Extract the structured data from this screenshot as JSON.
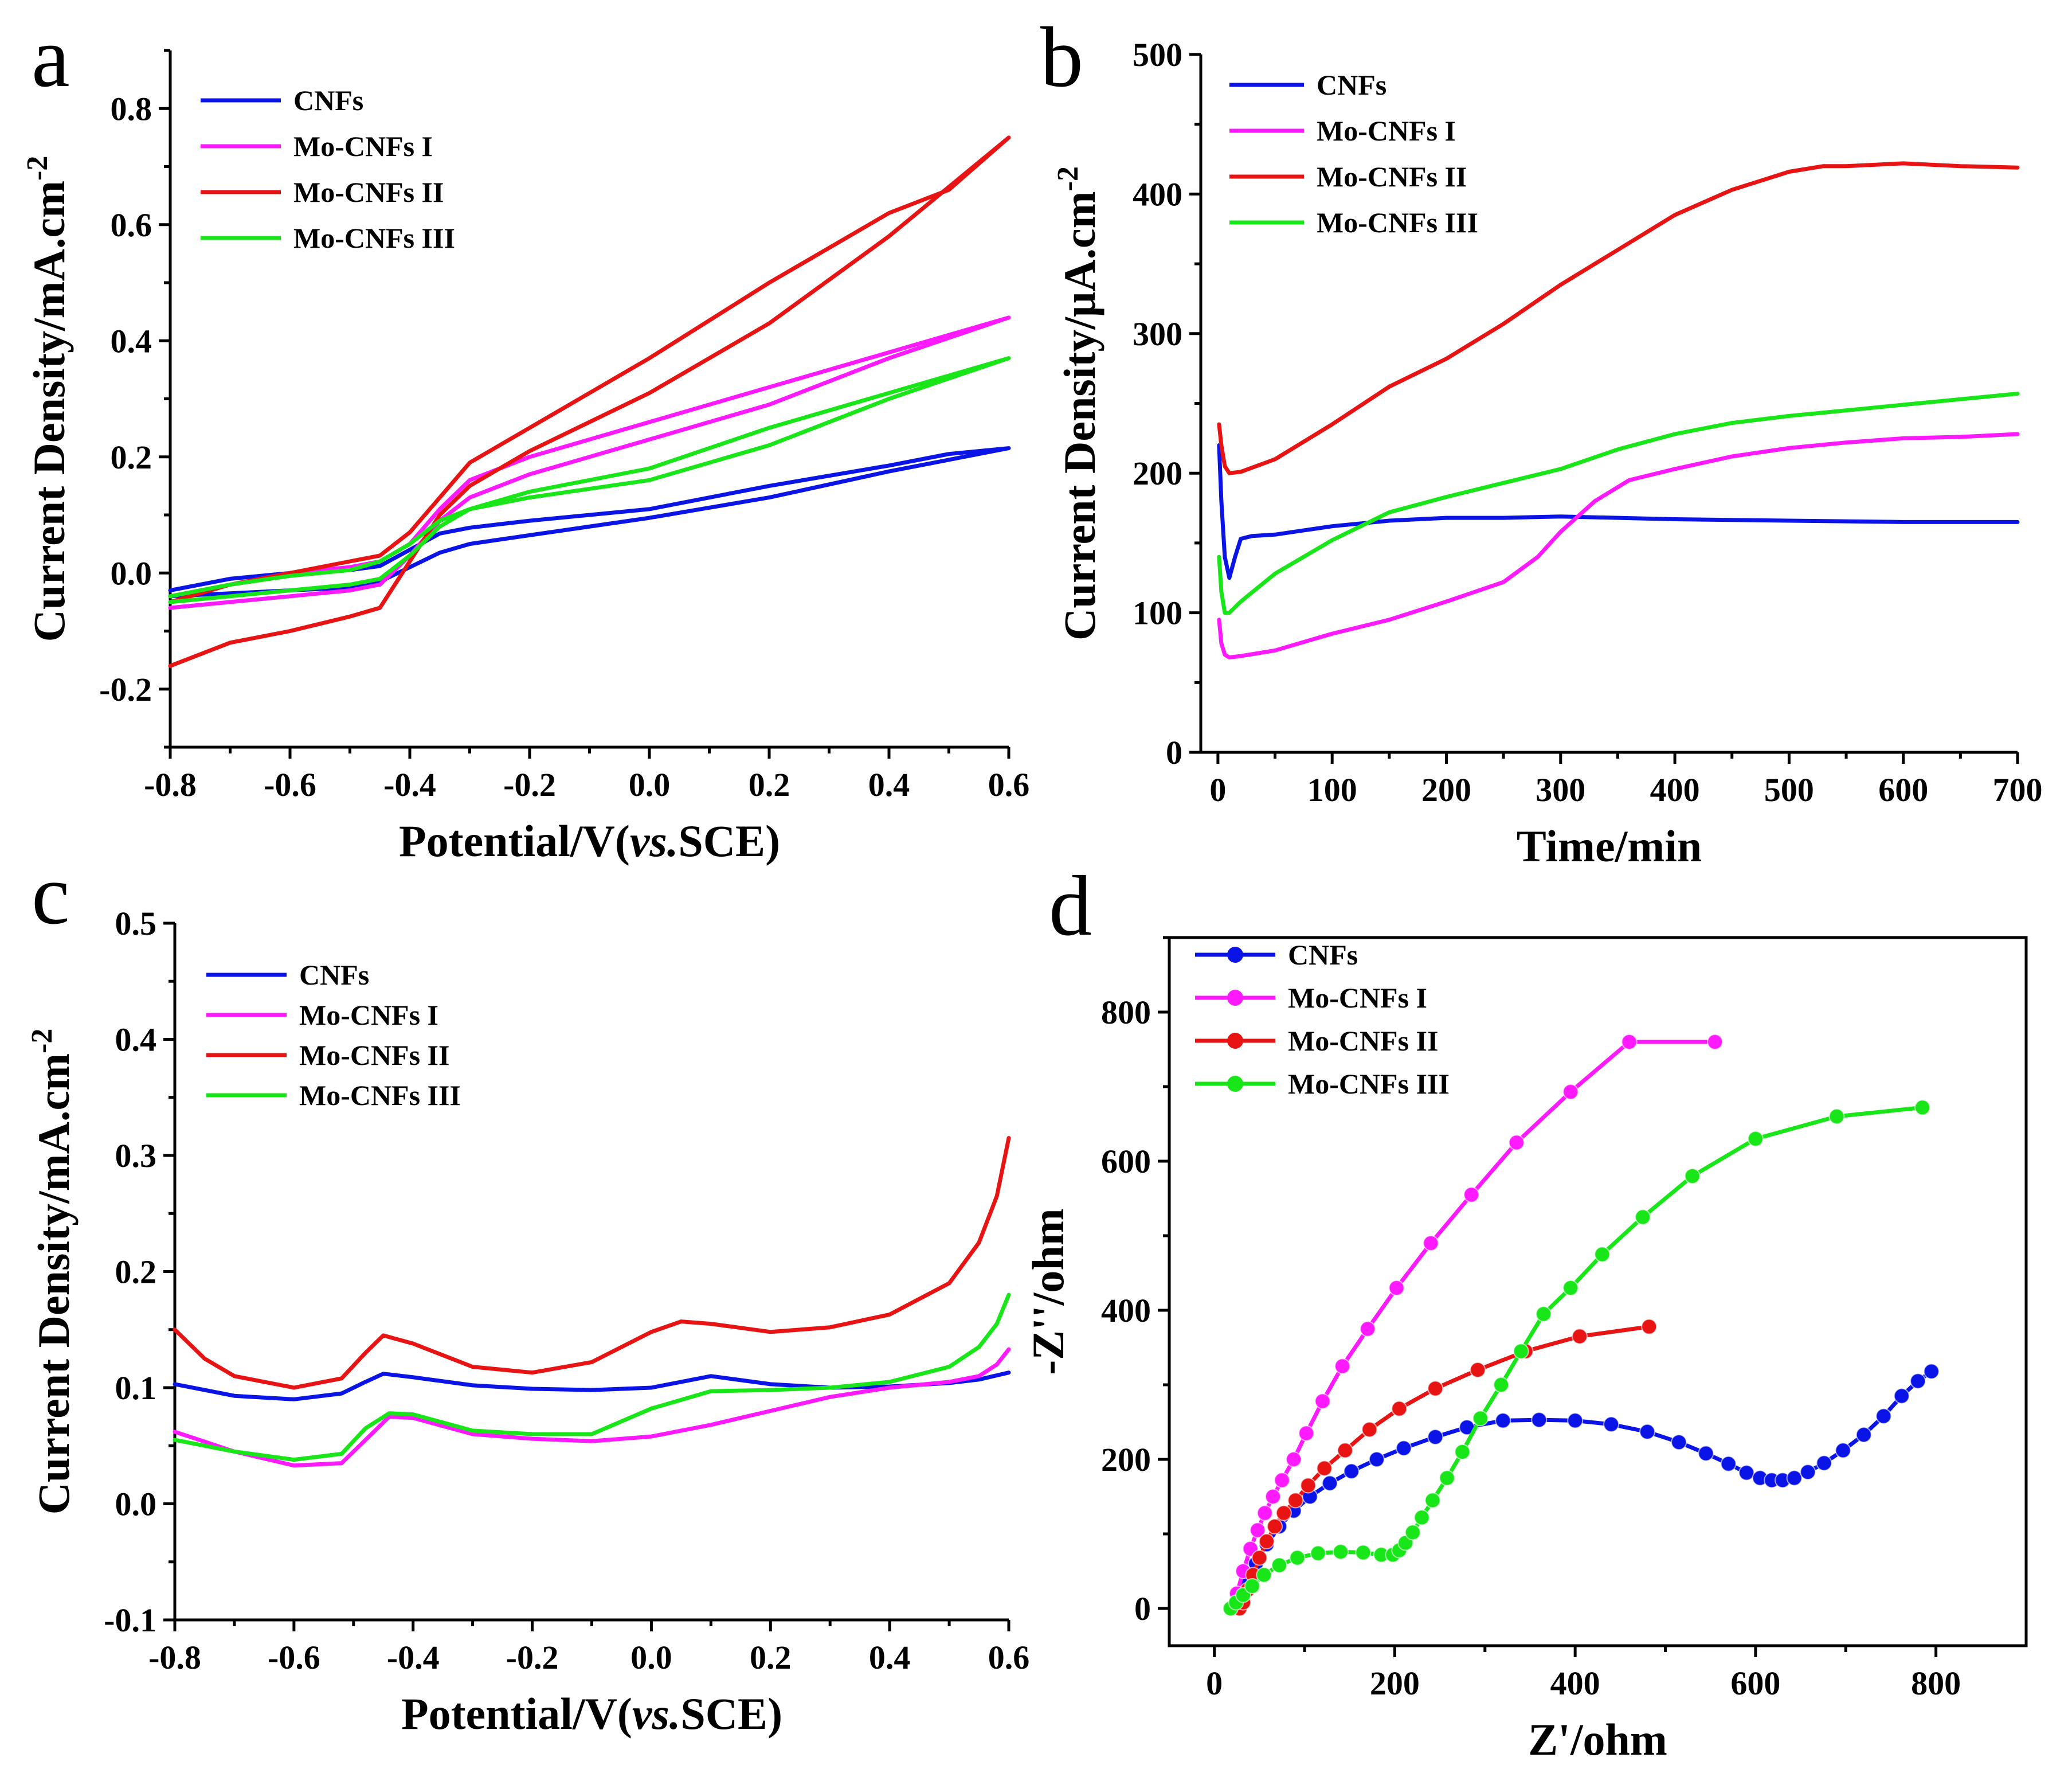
{
  "colors": {
    "CNFs": "#0a14e6",
    "Mo-CNFs I": "#ff19ff",
    "Mo-CNFs II": "#e81414",
    "Mo-CNFs III": "#19e619"
  },
  "legend": [
    "CNFs",
    "Mo-CNFs I",
    "Mo-CNFs II",
    "Mo-CNFs III"
  ],
  "chart_data": [
    {
      "id": "a",
      "type": "line",
      "panel_label": "a",
      "xlabel_parts": [
        "Potential/V(",
        "vs.",
        "SCE)"
      ],
      "ylabel": "Current Density/mA.cm",
      "ylabel_sup": "-2",
      "xlim": [
        -0.8,
        0.6
      ],
      "ylim": [
        -0.3,
        0.9
      ],
      "xticks": [
        "-0.8",
        "-0.6",
        "-0.4",
        "-0.2",
        "0.0",
        "0.2",
        "0.4",
        "0.6"
      ],
      "xtick_values": [
        -0.8,
        -0.6,
        -0.4,
        -0.2,
        0.0,
        0.2,
        0.4,
        0.6
      ],
      "yticks": [
        "-0.2",
        "0.0",
        "0.2",
        "0.4",
        "0.6",
        "0.8"
      ],
      "ytick_values": [
        -0.2,
        0.0,
        0.2,
        0.4,
        0.6,
        0.8
      ],
      "series": [
        {
          "name": "CNFs",
          "x": [
            -0.8,
            -0.7,
            -0.6,
            -0.5,
            -0.45,
            -0.4,
            -0.35,
            -0.3,
            -0.2,
            0.0,
            0.2,
            0.4,
            0.6,
            0.5,
            0.4,
            0.2,
            0.0,
            -0.2,
            -0.3,
            -0.35,
            -0.4,
            -0.45,
            -0.5,
            -0.6,
            -0.7,
            -0.8
          ],
          "y": [
            -0.04,
            -0.035,
            -0.03,
            -0.025,
            -0.015,
            0.01,
            0.035,
            0.05,
            0.065,
            0.095,
            0.13,
            0.175,
            0.215,
            0.205,
            0.185,
            0.15,
            0.11,
            0.09,
            0.078,
            0.068,
            0.04,
            0.012,
            0.005,
            0.0,
            -0.01,
            -0.03
          ]
        },
        {
          "name": "Mo-CNFs I",
          "x": [
            -0.8,
            -0.7,
            -0.6,
            -0.5,
            -0.45,
            -0.4,
            -0.35,
            -0.3,
            -0.2,
            0.0,
            0.2,
            0.4,
            0.6,
            0.5,
            0.4,
            0.2,
            0.0,
            -0.2,
            -0.3,
            -0.35,
            -0.4,
            -0.45,
            -0.5,
            -0.6,
            -0.7,
            -0.8
          ],
          "y": [
            -0.06,
            -0.05,
            -0.04,
            -0.03,
            -0.02,
            0.03,
            0.09,
            0.13,
            0.17,
            0.23,
            0.29,
            0.37,
            0.44,
            0.41,
            0.38,
            0.32,
            0.26,
            0.2,
            0.16,
            0.11,
            0.05,
            0.02,
            0.01,
            0.0,
            -0.02,
            -0.04
          ]
        },
        {
          "name": "Mo-CNFs II",
          "x": [
            -0.8,
            -0.7,
            -0.6,
            -0.5,
            -0.45,
            -0.4,
            -0.35,
            -0.3,
            -0.2,
            0.0,
            0.2,
            0.4,
            0.6,
            0.5,
            0.4,
            0.2,
            0.0,
            -0.2,
            -0.3,
            -0.35,
            -0.4,
            -0.45,
            -0.5,
            -0.6,
            -0.7,
            -0.8
          ],
          "y": [
            -0.16,
            -0.12,
            -0.1,
            -0.075,
            -0.06,
            0.02,
            0.1,
            0.15,
            0.21,
            0.31,
            0.43,
            0.58,
            0.75,
            0.66,
            0.62,
            0.5,
            0.37,
            0.25,
            0.19,
            0.13,
            0.07,
            0.03,
            0.02,
            0.0,
            -0.02,
            -0.05
          ]
        },
        {
          "name": "Mo-CNFs III",
          "x": [
            -0.8,
            -0.7,
            -0.6,
            -0.5,
            -0.45,
            -0.4,
            -0.35,
            -0.3,
            -0.2,
            0.0,
            0.2,
            0.4,
            0.6,
            0.5,
            0.4,
            0.2,
            0.0,
            -0.2,
            -0.3,
            -0.35,
            -0.4,
            -0.45,
            -0.5,
            -0.6,
            -0.7,
            -0.8
          ],
          "y": [
            -0.05,
            -0.04,
            -0.03,
            -0.02,
            -0.01,
            0.03,
            0.08,
            0.11,
            0.13,
            0.16,
            0.22,
            0.3,
            0.37,
            0.34,
            0.31,
            0.25,
            0.18,
            0.14,
            0.11,
            0.09,
            0.05,
            0.02,
            0.005,
            -0.005,
            -0.02,
            -0.04
          ]
        }
      ]
    },
    {
      "id": "b",
      "type": "line",
      "panel_label": "b",
      "xlabel": "Time/min",
      "ylabel": "Current Density/μA.cm",
      "ylabel_sup": "-2",
      "xlim": [
        -15,
        700
      ],
      "ylim": [
        0,
        500
      ],
      "xticks": [
        "0",
        "100",
        "200",
        "300",
        "400",
        "500",
        "600",
        "700"
      ],
      "xtick_values": [
        0,
        100,
        200,
        300,
        400,
        500,
        600,
        700
      ],
      "yticks": [
        "0",
        "100",
        "200",
        "300",
        "400",
        "500"
      ],
      "ytick_values": [
        0,
        100,
        200,
        300,
        400,
        500
      ],
      "series": [
        {
          "name": "CNFs",
          "x": [
            1,
            3,
            6,
            10,
            15,
            20,
            30,
            50,
            100,
            150,
            200,
            250,
            300,
            350,
            400,
            500,
            600,
            700
          ],
          "y": [
            220,
            180,
            140,
            125,
            140,
            153,
            155,
            156,
            162,
            166,
            168,
            168,
            169,
            168,
            167,
            166,
            165,
            165
          ]
        },
        {
          "name": "Mo-CNFs I",
          "x": [
            1,
            3,
            6,
            10,
            20,
            50,
            100,
            150,
            200,
            250,
            280,
            300,
            330,
            360,
            400,
            450,
            500,
            550,
            600,
            650,
            700
          ],
          "y": [
            95,
            78,
            70,
            68,
            69,
            73,
            85,
            95,
            108,
            122,
            140,
            158,
            180,
            195,
            203,
            212,
            218,
            222,
            225,
            226,
            228
          ]
        },
        {
          "name": "Mo-CNFs II",
          "x": [
            1,
            3,
            6,
            10,
            20,
            50,
            100,
            150,
            200,
            250,
            300,
            350,
            400,
            450,
            500,
            530,
            550,
            600,
            650,
            700
          ],
          "y": [
            235,
            220,
            205,
            200,
            201,
            210,
            235,
            262,
            282,
            307,
            335,
            360,
            385,
            403,
            416,
            420,
            420,
            422,
            420,
            419
          ]
        },
        {
          "name": "Mo-CNFs III",
          "x": [
            1,
            3,
            6,
            10,
            20,
            50,
            100,
            150,
            200,
            250,
            300,
            350,
            400,
            450,
            500,
            550,
            600,
            650,
            700
          ],
          "y": [
            140,
            115,
            100,
            100,
            108,
            128,
            152,
            172,
            183,
            193,
            203,
            217,
            228,
            236,
            241,
            245,
            249,
            253,
            257
          ]
        }
      ]
    },
    {
      "id": "c",
      "type": "line",
      "panel_label": "c",
      "xlabel_parts": [
        "Potential/V(",
        "vs.",
        "SCE)"
      ],
      "ylabel": "Current Density/mA.cm",
      "ylabel_sup": "-2",
      "xlim": [
        -0.8,
        0.6
      ],
      "ylim": [
        -0.1,
        0.5
      ],
      "xticks": [
        "-0.8",
        "-0.6",
        "-0.4",
        "-0.2",
        "0.0",
        "0.2",
        "0.4",
        "0.6"
      ],
      "xtick_values": [
        -0.8,
        -0.6,
        -0.4,
        -0.2,
        0.0,
        0.2,
        0.4,
        0.6
      ],
      "yticks": [
        "-0.1",
        "0.0",
        "0.1",
        "0.2",
        "0.3",
        "0.4",
        "0.5"
      ],
      "ytick_values": [
        -0.1,
        0.0,
        0.1,
        0.2,
        0.3,
        0.4,
        0.5
      ],
      "series": [
        {
          "name": "CNFs",
          "x": [
            -0.8,
            -0.7,
            -0.6,
            -0.52,
            -0.48,
            -0.45,
            -0.4,
            -0.3,
            -0.2,
            -0.1,
            0.0,
            0.1,
            0.2,
            0.3,
            0.4,
            0.5,
            0.55,
            0.6
          ],
          "y": [
            0.103,
            0.093,
            0.09,
            0.095,
            0.105,
            0.112,
            0.109,
            0.102,
            0.099,
            0.098,
            0.1,
            0.11,
            0.103,
            0.1,
            0.101,
            0.104,
            0.107,
            0.113
          ]
        },
        {
          "name": "Mo-CNFs I",
          "x": [
            -0.8,
            -0.7,
            -0.6,
            -0.52,
            -0.48,
            -0.44,
            -0.4,
            -0.3,
            -0.2,
            -0.1,
            0.0,
            0.1,
            0.2,
            0.3,
            0.4,
            0.5,
            0.55,
            0.58,
            0.6
          ],
          "y": [
            0.062,
            0.045,
            0.033,
            0.035,
            0.055,
            0.075,
            0.074,
            0.06,
            0.056,
            0.054,
            0.058,
            0.068,
            0.08,
            0.092,
            0.1,
            0.105,
            0.11,
            0.12,
            0.133
          ]
        },
        {
          "name": "Mo-CNFs II",
          "x": [
            -0.8,
            -0.75,
            -0.7,
            -0.6,
            -0.52,
            -0.48,
            -0.45,
            -0.4,
            -0.3,
            -0.2,
            -0.1,
            0.0,
            0.05,
            0.1,
            0.2,
            0.3,
            0.4,
            0.5,
            0.55,
            0.58,
            0.6
          ],
          "y": [
            0.15,
            0.125,
            0.11,
            0.1,
            0.108,
            0.13,
            0.145,
            0.138,
            0.118,
            0.113,
            0.122,
            0.148,
            0.157,
            0.155,
            0.148,
            0.152,
            0.163,
            0.19,
            0.225,
            0.265,
            0.315
          ]
        },
        {
          "name": "Mo-CNFs III",
          "x": [
            -0.8,
            -0.7,
            -0.6,
            -0.52,
            -0.48,
            -0.44,
            -0.4,
            -0.3,
            -0.2,
            -0.1,
            0.0,
            0.1,
            0.2,
            0.3,
            0.4,
            0.5,
            0.55,
            0.58,
            0.6
          ],
          "y": [
            0.055,
            0.045,
            0.038,
            0.043,
            0.065,
            0.078,
            0.077,
            0.063,
            0.06,
            0.06,
            0.082,
            0.097,
            0.098,
            0.1,
            0.105,
            0.118,
            0.135,
            0.155,
            0.18
          ]
        }
      ]
    },
    {
      "id": "d",
      "type": "scatter",
      "panel_label": "d",
      "xlabel": "Z'/ohm",
      "ylabel": "-Z''/ohm",
      "xlim": [
        -50,
        900
      ],
      "ylim": [
        -50,
        900
      ],
      "xticks": [
        "0",
        "200",
        "400",
        "600",
        "800"
      ],
      "xtick_values": [
        0,
        200,
        400,
        600,
        800
      ],
      "yticks": [
        "0",
        "200",
        "400",
        "600",
        "800"
      ],
      "ytick_values": [
        0,
        200,
        400,
        600,
        800
      ],
      "series": [
        {
          "name": "CNFs",
          "x": [
            22,
            28,
            36,
            46,
            58,
            72,
            88,
            106,
            128,
            152,
            180,
            210,
            245,
            280,
            320,
            360,
            400,
            440,
            480,
            515,
            545,
            570,
            590,
            605,
            618,
            630,
            643,
            658,
            676,
            697,
            720,
            742,
            762,
            780,
            795
          ],
          "y": [
            2,
            15,
            35,
            60,
            86,
            110,
            131,
            150,
            168,
            184,
            200,
            215,
            230,
            243,
            252,
            253,
            252,
            247,
            237,
            223,
            208,
            194,
            182,
            175,
            172,
            172,
            175,
            183,
            195,
            212,
            233,
            258,
            285,
            305,
            318
          ]
        },
        {
          "name": "Mo-CNFs I",
          "x": [
            20,
            25,
            32,
            40,
            48,
            56,
            65,
            75,
            88,
            102,
            120,
            142,
            170,
            202,
            240,
            285,
            335,
            395,
            460,
            555
          ],
          "y": [
            0,
            20,
            50,
            80,
            105,
            128,
            150,
            172,
            200,
            235,
            278,
            325,
            375,
            430,
            490,
            555,
            625,
            693,
            760,
            760
          ]
        },
        {
          "name": "Mo-CNFs II",
          "x": [
            28,
            32,
            37,
            43,
            50,
            58,
            67,
            77,
            90,
            104,
            122,
            145,
            172,
            205,
            245,
            292,
            345,
            405,
            482
          ],
          "y": [
            0,
            8,
            25,
            45,
            68,
            90,
            110,
            128,
            145,
            165,
            188,
            212,
            240,
            268,
            295,
            320,
            345,
            365,
            378
          ]
        },
        {
          "name": "Mo-CNFs III",
          "x": [
            18,
            24,
            32,
            42,
            55,
            72,
            92,
            115,
            140,
            165,
            185,
            198,
            205,
            212,
            220,
            230,
            242,
            258,
            275,
            295,
            318,
            340,
            365,
            395,
            430,
            475,
            530,
            600,
            690,
            785
          ],
          "y": [
            0,
            8,
            18,
            30,
            45,
            58,
            68,
            74,
            76,
            75,
            72,
            72,
            78,
            88,
            102,
            122,
            145,
            175,
            210,
            255,
            300,
            345,
            395,
            430,
            475,
            525,
            580,
            630,
            660,
            672
          ]
        }
      ]
    }
  ]
}
